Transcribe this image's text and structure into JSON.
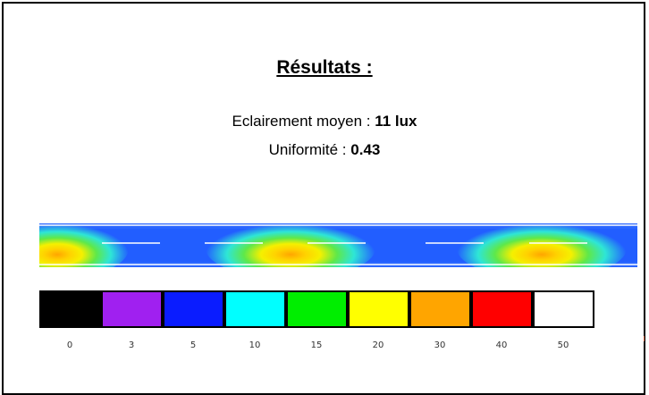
{
  "results": {
    "title": "Résultats :",
    "mean_label": "Eclairement moyen : ",
    "mean_value": "11 lux",
    "uniformity_label": "Uniformité : ",
    "uniformity_value": "0.43"
  },
  "heatmap": {
    "description_colors": [
      "#1e50ff",
      "#2ee6d6",
      "#46e84a",
      "#ffee00",
      "#ffa000"
    ],
    "light_spot_centers_fraction": [
      0.03,
      0.42,
      0.84
    ]
  },
  "legend": {
    "items": [
      {
        "label": "0",
        "color": "#000000"
      },
      {
        "label": "3",
        "color": "#a020f0"
      },
      {
        "label": "5",
        "color": "#0a1cff"
      },
      {
        "label": "10",
        "color": "#00ffff"
      },
      {
        "label": "15",
        "color": "#00ee00"
      },
      {
        "label": "20",
        "color": "#ffff00"
      },
      {
        "label": "30",
        "color": "#ffa500"
      },
      {
        "label": "40",
        "color": "#ff0000"
      },
      {
        "label": "50",
        "color": "#ffffff"
      }
    ]
  }
}
